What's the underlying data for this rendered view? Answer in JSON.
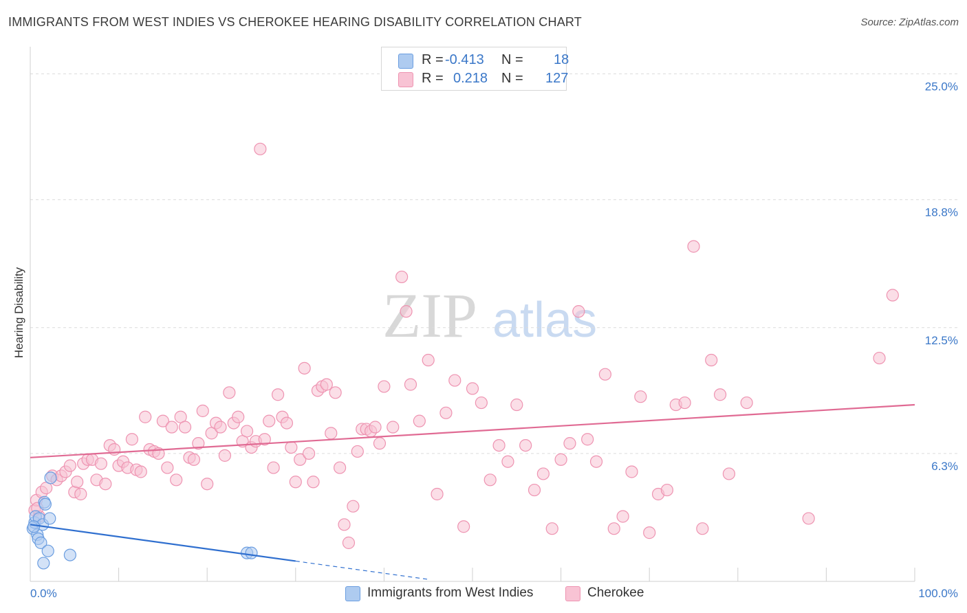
{
  "header": {
    "title": "IMMIGRANTS FROM WEST INDIES VS CHEROKEE HEARING DISABILITY CORRELATION CHART",
    "source": "Source: ZipAtlas.com"
  },
  "legend": {
    "rows": [
      {
        "r_label": "R =",
        "r_value": "-0.413",
        "n_label": "N =",
        "n_value": "18"
      },
      {
        "r_label": "R =",
        "r_value": "0.218",
        "n_label": "N =",
        "n_value": "127"
      }
    ],
    "bottom": [
      "Immigrants from West Indies",
      "Cherokee"
    ]
  },
  "watermark": {
    "zip": "ZIP",
    "atlas": "atlas"
  },
  "colors": {
    "blue_fill": "#aecbf0",
    "blue_stroke": "#6a9de0",
    "blue_line": "#2f6fcf",
    "pink_fill": "#f8c3d4",
    "pink_stroke": "#ee93b1",
    "pink_line": "#e06a93",
    "axis_text": "#3a77c8"
  },
  "chart_data": {
    "type": "scatter",
    "ylabel": "Hearing Disability",
    "xlim": [
      0,
      100
    ],
    "ylim": [
      0,
      26
    ],
    "x_tick_labels": [
      "0.0%",
      "100.0%"
    ],
    "y_ticks": [
      6.3,
      12.5,
      18.8,
      25.0
    ],
    "y_tick_labels": [
      "6.3%",
      "12.5%",
      "18.8%",
      "25.0%"
    ],
    "grid": true,
    "legend_position": "top-center",
    "series": [
      {
        "name": "Immigrants from West Indies",
        "color": "blue",
        "trend": {
          "x0": 0,
          "y0": 2.8,
          "x1": 30,
          "y1": 1.0,
          "dashed_to_x": 45,
          "dashed_to_y": 0.1
        },
        "points": [
          [
            0.3,
            2.6
          ],
          [
            0.5,
            2.9
          ],
          [
            0.6,
            3.2
          ],
          [
            0.8,
            2.3
          ],
          [
            0.9,
            2.1
          ],
          [
            1.0,
            3.1
          ],
          [
            1.2,
            1.9
          ],
          [
            1.4,
            2.8
          ],
          [
            1.5,
            0.9
          ],
          [
            1.6,
            3.9
          ],
          [
            1.7,
            3.8
          ],
          [
            2.0,
            1.5
          ],
          [
            2.2,
            3.1
          ],
          [
            2.3,
            5.1
          ],
          [
            4.5,
            1.3
          ],
          [
            24.5,
            1.4
          ],
          [
            25.0,
            1.4
          ],
          [
            0.4,
            2.7
          ]
        ]
      },
      {
        "name": "Cherokee",
        "color": "pink",
        "trend": {
          "x0": 0,
          "y0": 6.1,
          "x1": 100,
          "y1": 8.7
        },
        "points": [
          [
            0.5,
            3.5
          ],
          [
            0.7,
            4.0
          ],
          [
            1.0,
            3.2
          ],
          [
            1.3,
            4.4
          ],
          [
            1.8,
            4.6
          ],
          [
            2.5,
            5.2
          ],
          [
            3.0,
            5.0
          ],
          [
            3.5,
            5.2
          ],
          [
            4.0,
            5.4
          ],
          [
            4.5,
            5.7
          ],
          [
            5.0,
            4.4
          ],
          [
            5.3,
            4.9
          ],
          [
            5.7,
            4.3
          ],
          [
            6.0,
            5.8
          ],
          [
            6.5,
            6.0
          ],
          [
            7.0,
            6.0
          ],
          [
            7.5,
            5.0
          ],
          [
            8.0,
            5.8
          ],
          [
            8.5,
            4.8
          ],
          [
            9.0,
            6.7
          ],
          [
            9.5,
            6.5
          ],
          [
            10.0,
            5.7
          ],
          [
            10.5,
            5.9
          ],
          [
            11.0,
            5.6
          ],
          [
            11.5,
            7.0
          ],
          [
            12.0,
            5.5
          ],
          [
            12.5,
            5.4
          ],
          [
            13.0,
            8.1
          ],
          [
            13.5,
            6.5
          ],
          [
            14.0,
            6.4
          ],
          [
            14.5,
            6.3
          ],
          [
            15.0,
            7.9
          ],
          [
            15.5,
            5.6
          ],
          [
            16.0,
            7.6
          ],
          [
            16.5,
            5.0
          ],
          [
            17.0,
            8.1
          ],
          [
            17.5,
            7.6
          ],
          [
            18.0,
            6.1
          ],
          [
            18.5,
            6.0
          ],
          [
            19.0,
            6.8
          ],
          [
            19.5,
            8.4
          ],
          [
            20.0,
            4.8
          ],
          [
            20.5,
            7.3
          ],
          [
            21.0,
            7.8
          ],
          [
            21.5,
            7.6
          ],
          [
            22.0,
            6.2
          ],
          [
            22.5,
            9.3
          ],
          [
            23.0,
            7.8
          ],
          [
            23.5,
            8.1
          ],
          [
            24.0,
            6.9
          ],
          [
            24.5,
            7.4
          ],
          [
            25.0,
            6.6
          ],
          [
            25.5,
            6.9
          ],
          [
            26.0,
            21.3
          ],
          [
            26.5,
            7.0
          ],
          [
            27.0,
            7.9
          ],
          [
            27.5,
            5.6
          ],
          [
            28.0,
            9.2
          ],
          [
            28.5,
            8.1
          ],
          [
            29.0,
            7.8
          ],
          [
            29.5,
            6.6
          ],
          [
            30.0,
            4.9
          ],
          [
            30.5,
            6.0
          ],
          [
            31.0,
            10.5
          ],
          [
            31.5,
            6.3
          ],
          [
            32.0,
            4.9
          ],
          [
            32.5,
            9.4
          ],
          [
            33.0,
            9.6
          ],
          [
            33.5,
            9.7
          ],
          [
            34.0,
            7.3
          ],
          [
            34.5,
            9.3
          ],
          [
            35.0,
            5.6
          ],
          [
            35.5,
            2.8
          ],
          [
            36.0,
            1.9
          ],
          [
            36.5,
            3.7
          ],
          [
            37.0,
            6.4
          ],
          [
            37.5,
            7.5
          ],
          [
            38.0,
            7.5
          ],
          [
            38.5,
            7.4
          ],
          [
            39.0,
            7.6
          ],
          [
            39.5,
            6.8
          ],
          [
            40.0,
            9.6
          ],
          [
            41.0,
            7.6
          ],
          [
            42.0,
            15.0
          ],
          [
            42.5,
            13.3
          ],
          [
            43.0,
            9.7
          ],
          [
            44.0,
            7.9
          ],
          [
            45.0,
            10.9
          ],
          [
            46.0,
            4.3
          ],
          [
            47.0,
            8.3
          ],
          [
            48.0,
            9.9
          ],
          [
            49.0,
            2.7
          ],
          [
            50.0,
            9.5
          ],
          [
            51.0,
            8.8
          ],
          [
            52.0,
            5.0
          ],
          [
            53.0,
            6.7
          ],
          [
            54.0,
            5.9
          ],
          [
            55.0,
            8.7
          ],
          [
            56.0,
            6.7
          ],
          [
            57.0,
            4.5
          ],
          [
            58.0,
            5.3
          ],
          [
            59.0,
            2.6
          ],
          [
            60.0,
            6.0
          ],
          [
            61.0,
            6.8
          ],
          [
            62.0,
            13.3
          ],
          [
            63.0,
            7.0
          ],
          [
            64.0,
            5.9
          ],
          [
            65.0,
            10.2
          ],
          [
            66.0,
            2.6
          ],
          [
            67.0,
            3.2
          ],
          [
            68.0,
            5.4
          ],
          [
            69.0,
            9.1
          ],
          [
            70.0,
            2.4
          ],
          [
            71.0,
            4.3
          ],
          [
            72.0,
            4.5
          ],
          [
            73.0,
            8.7
          ],
          [
            74.0,
            8.8
          ],
          [
            75.0,
            16.5
          ],
          [
            76.0,
            2.6
          ],
          [
            77.0,
            10.9
          ],
          [
            78.0,
            9.2
          ],
          [
            79.0,
            5.3
          ],
          [
            81.0,
            8.8
          ],
          [
            88.0,
            3.1
          ],
          [
            96.0,
            11.0
          ],
          [
            97.5,
            14.1
          ],
          [
            0.8,
            3.6
          ]
        ]
      }
    ]
  }
}
